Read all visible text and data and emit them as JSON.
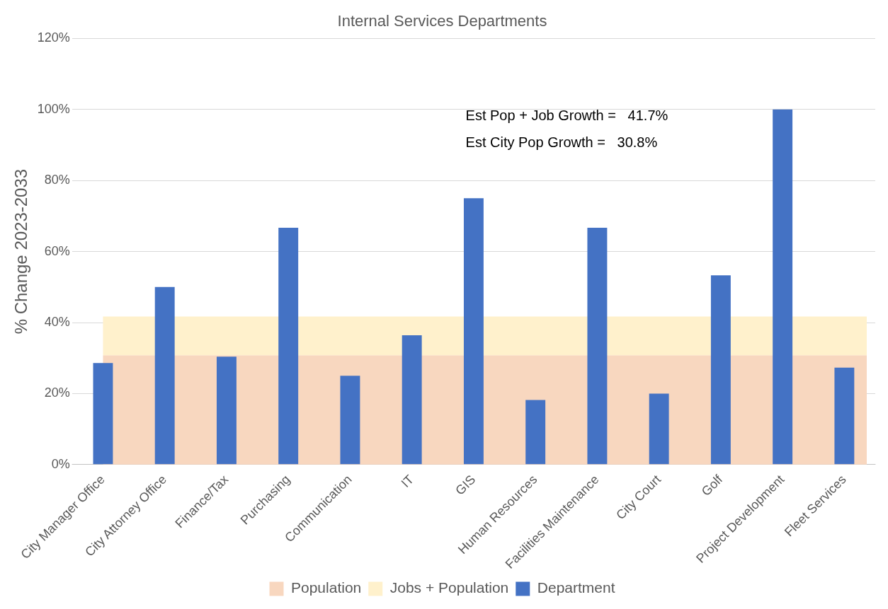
{
  "chart_data": {
    "type": "bar",
    "title": "Internal Services Departments",
    "ylabel": "% Change 2023-2033",
    "categories": [
      "City Manager Office",
      "City Attorney Office",
      "Finance/Tax",
      "Purchasing",
      "Communication",
      "IT",
      "GIS",
      "Human Resources",
      "Facilities Maintenance",
      "City Court",
      "Golf",
      "Project Development",
      "Fleet Services"
    ],
    "series": [
      {
        "name": "Department",
        "color": "#4472c4",
        "values": [
          28.6,
          50,
          30.4,
          66.7,
          25,
          36.4,
          75,
          18.2,
          66.7,
          20,
          53.3,
          100,
          27.3
        ]
      }
    ],
    "bands": [
      {
        "axis": "y",
        "from": 0,
        "to": 30.8,
        "label": "Population",
        "color": "#f8d7bf"
      },
      {
        "axis": "y",
        "from": 30.8,
        "to": 41.7,
        "label": "Jobs + Population",
        "color": "#fff1cc"
      }
    ],
    "ylim": [
      0,
      120
    ],
    "yticks": [
      {
        "value": 0,
        "label": "0%"
      },
      {
        "value": 20,
        "label": "20%"
      },
      {
        "value": 40,
        "label": "40%"
      },
      {
        "value": 60,
        "label": "60%"
      },
      {
        "value": 80,
        "label": "80%"
      },
      {
        "value": 100,
        "label": "100%"
      },
      {
        "value": 120,
        "label": "120%"
      }
    ],
    "grid": "y",
    "legend": "bottom",
    "annotations": [
      "Est Pop + Job Growth =   41.7%",
      "Est City Pop Growth =   30.8%"
    ]
  }
}
